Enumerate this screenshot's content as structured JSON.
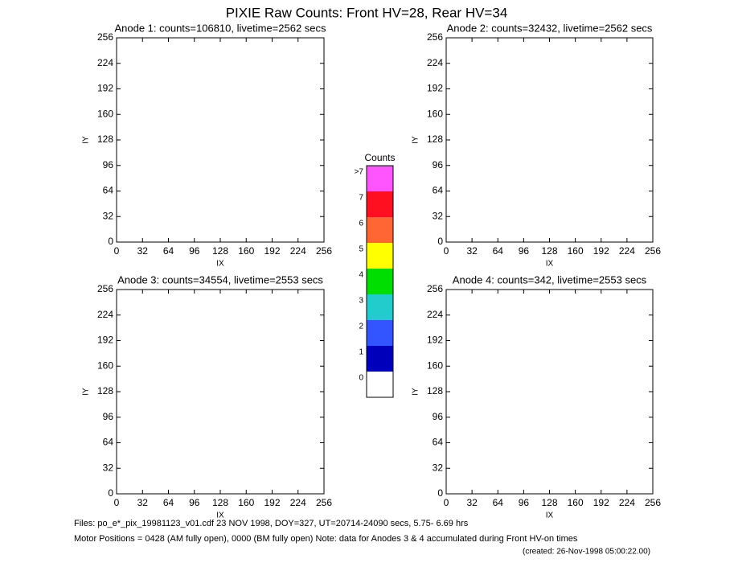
{
  "title": "PIXIE Raw Counts:  Front HV=28, Rear HV=34",
  "chart_data": [
    {
      "type": "heatmap",
      "title": "Anode 1: counts=106810, livetime=2562 secs",
      "xlabel": "IX",
      "ylabel": "IY",
      "xlim": [
        0,
        256
      ],
      "ylim": [
        0,
        256
      ],
      "xticks": [
        0,
        32,
        64,
        96,
        128,
        160,
        192,
        224,
        256
      ],
      "yticks": [
        0,
        32,
        64,
        96,
        128,
        160,
        192,
        224,
        256
      ]
    },
    {
      "type": "heatmap",
      "title": "Anode 2: counts=32432, livetime=2562 secs",
      "xlabel": "IX",
      "ylabel": "IY",
      "xlim": [
        0,
        256
      ],
      "ylim": [
        0,
        256
      ],
      "xticks": [
        0,
        32,
        64,
        96,
        128,
        160,
        192,
        224,
        256
      ],
      "yticks": [
        0,
        32,
        64,
        96,
        128,
        160,
        192,
        224,
        256
      ]
    },
    {
      "type": "heatmap",
      "title": "Anode 3: counts=34554, livetime=2553 secs",
      "xlabel": "IX",
      "ylabel": "IY",
      "xlim": [
        0,
        256
      ],
      "ylim": [
        0,
        256
      ],
      "xticks": [
        0,
        32,
        64,
        96,
        128,
        160,
        192,
        224,
        256
      ],
      "yticks": [
        0,
        32,
        64,
        96,
        128,
        160,
        192,
        224,
        256
      ]
    },
    {
      "type": "heatmap",
      "title": "Anode 4: counts=342, livetime=2553 secs",
      "xlabel": "IX",
      "ylabel": "IY",
      "xlim": [
        0,
        256
      ],
      "ylim": [
        0,
        256
      ],
      "xticks": [
        0,
        32,
        64,
        96,
        128,
        160,
        192,
        224,
        256
      ],
      "yticks": [
        0,
        32,
        64,
        96,
        128,
        160,
        192,
        224,
        256
      ]
    }
  ],
  "colorbar": {
    "title": "Counts",
    "labels": [
      "0",
      "1",
      "2",
      "3",
      "4",
      "5",
      "6",
      "7",
      ">7"
    ],
    "colors": [
      "#ffffff",
      "#0000bb",
      "#3355ff",
      "#22cccc",
      "#00dd00",
      "#ffff00",
      "#ff6633",
      "#ff1020",
      "#ff55ff"
    ]
  },
  "footer": {
    "files": "Files: po_e*_pix_19981123_v01.cdf   23 NOV 1998, DOY=327, UT=20714-24090 secs,  5.75- 6.69 hrs",
    "motor": "Motor Positions = 0428 (AM fully open), 0000 (BM fully open)   Note: data for Anodes 3 & 4 accumulated during Front HV-on times",
    "created": "(created: 26-Nov-1998 05:00:22.00)"
  }
}
